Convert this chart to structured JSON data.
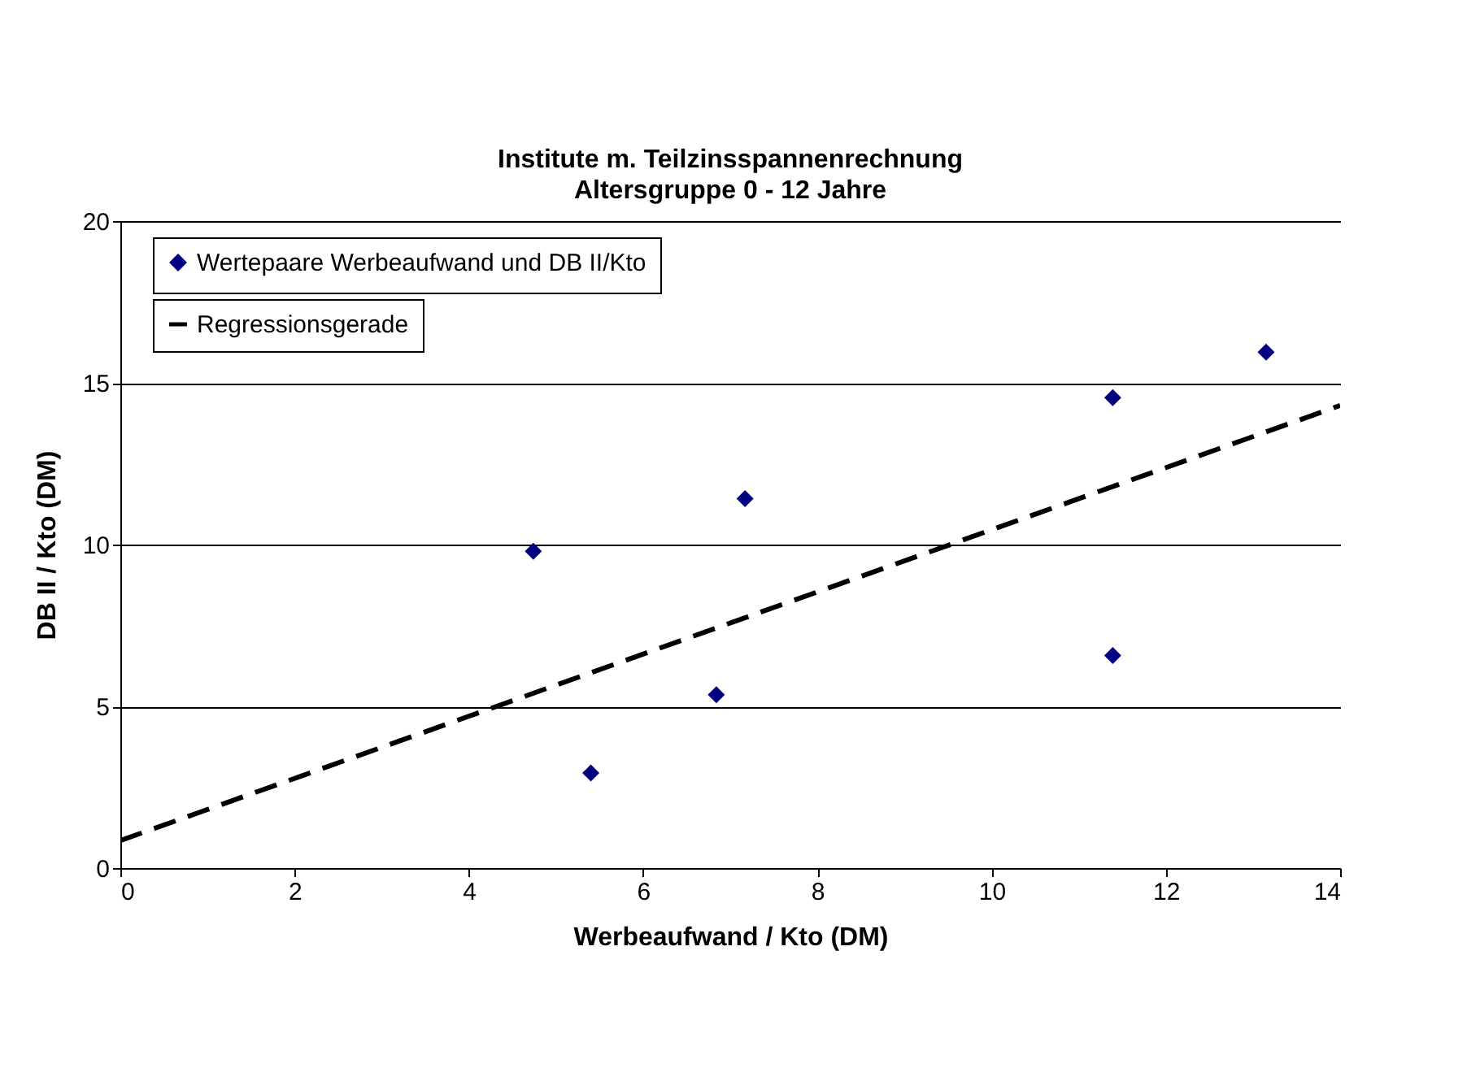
{
  "chart_data": {
    "type": "scatter",
    "title": "Institute m. Teilzinsspannenrechnung",
    "subtitle": "Altersgruppe 0 - 12 Jahre",
    "xlabel": "Werbeaufwand / Kto (DM)",
    "ylabel": "DB II /  Kto (DM)",
    "xlim": [
      0,
      14
    ],
    "xticks": [
      0,
      2,
      4,
      6,
      8,
      10,
      12,
      14
    ],
    "ylim": [
      0,
      20
    ],
    "yticks": [
      0,
      5,
      10,
      15,
      20
    ],
    "grid": "y",
    "legend": "top left",
    "marker": "diamond",
    "series": [
      {
        "name": "Wertepaare Werbeaufwand und DB II/Kto",
        "color": "#000080",
        "x": [
          4.74,
          5.4,
          6.84,
          7.17,
          11.39,
          11.39,
          13.15
        ],
        "values": [
          9.79,
          2.94,
          5.36,
          11.42,
          14.54,
          6.57,
          15.95
        ]
      },
      {
        "name": "Regressionsgerade",
        "type": "line",
        "color": "#000000",
        "line_style": "dashed",
        "marker": "none",
        "x": [
          0,
          14
        ],
        "values": [
          0.85,
          14.3
        ]
      }
    ]
  }
}
